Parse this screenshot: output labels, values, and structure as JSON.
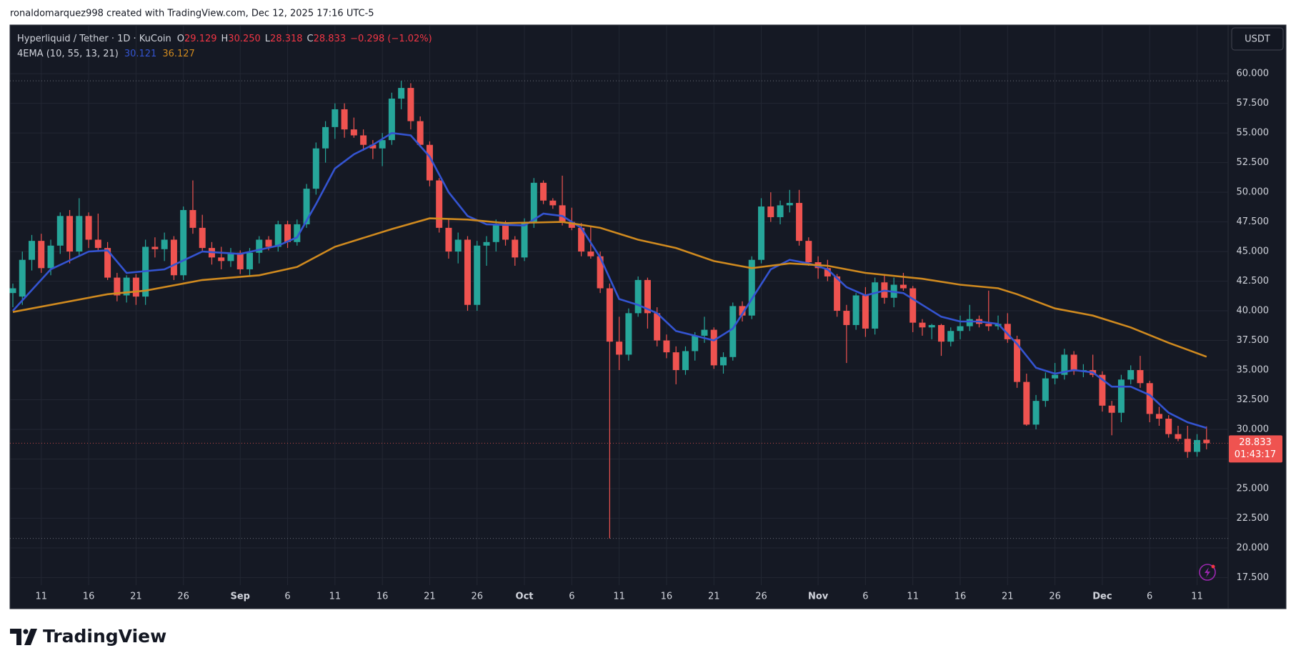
{
  "header": {
    "attribution": "ronaldomarquez998 created with TradingView.com, Dec 12, 2025 17:16 UTC-5"
  },
  "footer": {
    "brand": "TradingView"
  },
  "chart_data": {
    "type": "candlestick",
    "title": "Hyperliquid / Tether · 1D · KuCoin",
    "ohlc_legend": [
      {
        "label": "O",
        "value": "29.129"
      },
      {
        "label": "H",
        "value": "30.250"
      },
      {
        "label": "L",
        "value": "28.318"
      },
      {
        "label": "C",
        "value": "28.833"
      }
    ],
    "change": "−0.298 (−1.02%)",
    "indicator": "4EMA (10, 55, 13, 21)",
    "currency": "USDT",
    "countdown": "01:43:17",
    "up_color": "#26a69a",
    "down_color": "#ef5350",
    "grid": true,
    "categories": [
      null,
      null,
      null,
      "11",
      null,
      null,
      null,
      null,
      "16",
      null,
      null,
      null,
      null,
      "21",
      null,
      null,
      null,
      null,
      "26",
      null,
      null,
      null,
      null,
      null,
      "Sep",
      null,
      null,
      null,
      null,
      "6",
      null,
      null,
      null,
      null,
      "11",
      null,
      null,
      null,
      null,
      "16",
      null,
      null,
      null,
      null,
      "21",
      null,
      null,
      null,
      null,
      "26",
      null,
      null,
      null,
      null,
      "Oct",
      null,
      null,
      null,
      null,
      "6",
      null,
      null,
      null,
      null,
      "11",
      null,
      null,
      null,
      null,
      "16",
      null,
      null,
      null,
      null,
      "21",
      null,
      null,
      null,
      null,
      "26",
      null,
      null,
      null,
      null,
      null,
      "Nov",
      null,
      null,
      null,
      null,
      "6",
      null,
      null,
      null,
      null,
      "11",
      null,
      null,
      null,
      null,
      "16",
      null,
      null,
      null,
      null,
      "21",
      null,
      null,
      null,
      null,
      "26",
      null,
      null,
      null,
      null,
      "Dec",
      null,
      null,
      null,
      null,
      "6",
      null,
      null,
      null,
      null,
      "11",
      null
    ],
    "open": [
      41.5,
      41.2,
      44.3,
      45.9,
      43.6,
      45.5,
      48.0,
      45.0,
      48.0,
      46.0,
      45.3,
      42.8,
      41.3,
      42.8,
      41.2,
      45.4,
      45.2,
      46.0,
      43.0,
      48.5,
      47.0,
      45.3,
      44.5,
      44.2,
      44.9,
      43.5,
      44.9,
      46.0,
      45.4,
      47.3,
      45.8,
      47.3,
      50.3,
      53.7,
      55.5,
      57.0,
      55.3,
      54.8,
      54.0,
      53.7,
      54.4,
      57.9,
      58.8,
      56.0,
      54.0,
      51.0,
      47.0,
      45.0,
      46.0,
      40.5,
      45.5,
      45.8,
      47.3,
      46.0,
      44.5,
      47.5,
      50.8,
      49.3,
      48.9,
      47.5,
      47.0,
      45.0,
      44.6,
      41.9,
      37.4,
      36.3,
      39.8,
      42.6,
      39.8,
      37.5,
      36.5,
      35.0,
      36.6,
      37.9,
      38.4,
      35.4,
      36.1,
      40.4,
      39.6,
      44.3,
      48.8,
      47.9,
      48.9,
      49.1,
      45.9,
      44.1,
      43.6,
      42.9,
      40.0,
      38.8,
      41.3,
      38.5,
      42.4,
      41.1,
      42.2,
      41.9,
      39.0,
      38.6,
      38.8,
      37.4,
      38.3,
      38.7,
      39.3,
      38.9,
      38.7,
      38.9,
      37.6,
      34.0,
      30.4,
      32.4,
      34.3,
      34.6,
      36.3,
      34.9,
      35.0,
      34.6,
      32.0,
      31.4,
      34.2,
      35.0,
      33.9,
      31.3,
      30.9,
      29.6,
      29.2,
      28.1,
      29.129
    ],
    "high": [
      42.3,
      45.0,
      46.4,
      46.5,
      46.0,
      48.3,
      48.5,
      49.5,
      48.3,
      48.2,
      45.8,
      43.2,
      43.0,
      43.1,
      46.0,
      46.2,
      46.6,
      46.3,
      48.8,
      51.0,
      48.1,
      45.8,
      45.4,
      45.3,
      45.1,
      45.3,
      46.3,
      46.3,
      47.6,
      47.6,
      47.7,
      50.7,
      54.2,
      56.0,
      57.5,
      57.5,
      56.3,
      55.3,
      54.4,
      55.0,
      58.4,
      59.4,
      59.2,
      56.4,
      54.3,
      51.2,
      47.8,
      46.6,
      46.3,
      45.9,
      46.3,
      47.7,
      47.6,
      46.3,
      47.8,
      51.2,
      51.0,
      49.5,
      51.4,
      48.7,
      47.4,
      47.2,
      45.0,
      42.3,
      39.5,
      40.2,
      42.9,
      42.8,
      40.3,
      38.0,
      37.0,
      37.0,
      38.2,
      39.5,
      38.6,
      36.5,
      40.7,
      40.8,
      44.6,
      49.5,
      50.0,
      49.3,
      50.2,
      50.2,
      46.2,
      44.6,
      44.3,
      43.1,
      40.5,
      41.5,
      42.0,
      42.8,
      43.0,
      42.8,
      43.2,
      42.1,
      39.3,
      38.9,
      38.9,
      38.6,
      39.6,
      40.5,
      39.6,
      41.7,
      39.6,
      39.8,
      37.9,
      34.7,
      32.9,
      34.8,
      35.6,
      36.8,
      36.6,
      35.5,
      36.3,
      34.9,
      32.4,
      34.6,
      35.4,
      36.2,
      34.1,
      31.9,
      31.2,
      30.3,
      30.3,
      29.6,
      30.25
    ],
    "low": [
      40.3,
      40.5,
      43.4,
      43.2,
      43.0,
      44.8,
      44.0,
      44.6,
      45.3,
      45.0,
      42.6,
      40.8,
      40.7,
      40.5,
      40.5,
      44.5,
      44.2,
      42.6,
      42.6,
      46.5,
      45.0,
      43.9,
      43.5,
      43.7,
      43.1,
      43.0,
      44.0,
      45.1,
      45.0,
      45.3,
      45.5,
      47.0,
      49.8,
      52.5,
      54.5,
      54.6,
      54.6,
      53.5,
      52.8,
      52.2,
      54.0,
      57.0,
      55.3,
      53.8,
      50.5,
      46.6,
      44.4,
      44.0,
      40.0,
      40.0,
      43.8,
      45.0,
      45.5,
      43.8,
      44.2,
      47.0,
      49.0,
      48.6,
      47.2,
      46.8,
      44.6,
      44.4,
      41.5,
      20.8,
      35.0,
      35.8,
      39.5,
      38.5,
      37.0,
      36.0,
      33.8,
      34.6,
      35.8,
      37.3,
      35.1,
      34.7,
      35.8,
      39.1,
      39.3,
      44.0,
      47.5,
      47.3,
      48.3,
      45.5,
      43.8,
      42.7,
      42.5,
      39.5,
      35.6,
      38.4,
      37.8,
      38.0,
      40.6,
      40.3,
      41.7,
      38.2,
      37.9,
      37.6,
      36.2,
      37.0,
      37.6,
      38.3,
      38.6,
      38.3,
      38.4,
      37.3,
      33.5,
      30.3,
      30.0,
      31.9,
      33.8,
      34.2,
      34.6,
      34.4,
      34.4,
      31.5,
      29.5,
      30.6,
      33.8,
      33.5,
      30.6,
      30.3,
      29.3,
      29.0,
      27.6,
      27.7,
      28.318
    ],
    "close": [
      41.9,
      44.3,
      45.9,
      43.6,
      45.5,
      48.0,
      45.0,
      48.0,
      46.0,
      45.3,
      42.8,
      41.3,
      42.8,
      41.2,
      45.4,
      45.2,
      46.0,
      43.0,
      48.5,
      47.0,
      45.3,
      44.5,
      44.2,
      44.9,
      43.5,
      44.9,
      46.0,
      45.4,
      47.3,
      45.8,
      47.3,
      50.3,
      53.7,
      55.5,
      57.0,
      55.3,
      54.8,
      54.0,
      53.7,
      54.4,
      57.9,
      58.8,
      56.0,
      54.0,
      51.0,
      47.0,
      45.0,
      46.0,
      40.5,
      45.5,
      45.8,
      47.3,
      46.0,
      44.5,
      47.5,
      50.8,
      49.3,
      48.9,
      47.5,
      47.0,
      45.0,
      44.6,
      41.9,
      37.4,
      36.3,
      39.8,
      42.6,
      39.8,
      37.5,
      36.5,
      35.0,
      36.6,
      37.9,
      38.4,
      35.4,
      36.1,
      40.4,
      39.6,
      44.3,
      48.8,
      47.9,
      48.9,
      49.1,
      45.9,
      44.1,
      43.6,
      42.9,
      40.0,
      38.8,
      41.3,
      38.5,
      42.4,
      41.1,
      42.2,
      41.9,
      39.0,
      38.6,
      38.8,
      37.4,
      38.3,
      38.7,
      39.3,
      38.9,
      38.7,
      38.9,
      37.6,
      34.0,
      30.4,
      32.4,
      34.3,
      34.6,
      36.3,
      34.9,
      35.0,
      34.6,
      32.0,
      31.4,
      34.2,
      35.0,
      33.9,
      31.3,
      30.9,
      29.6,
      29.2,
      28.1,
      29.1,
      28.833
    ],
    "series": [
      {
        "color": "#3454d1",
        "x": [
          0,
          4,
          8,
          10,
          12,
          16,
          20,
          24,
          28,
          30,
          32,
          34,
          36,
          38,
          40,
          42,
          44,
          46,
          48,
          50,
          54,
          56,
          58,
          60,
          62,
          64,
          66,
          68,
          70,
          72,
          74,
          76,
          78,
          80,
          82,
          84,
          86,
          88,
          90,
          92,
          94,
          96,
          98,
          100,
          102,
          104,
          106,
          108,
          110,
          112,
          114,
          116,
          118,
          120,
          122,
          124,
          126
        ],
        "values": [
          40.0,
          43.5,
          45.0,
          45.1,
          43.2,
          43.5,
          45.0,
          44.8,
          45.5,
          46.2,
          49.0,
          52.0,
          53.2,
          54.0,
          55.0,
          54.8,
          53.0,
          50.0,
          48.0,
          47.3,
          47.2,
          48.2,
          48.0,
          47.0,
          44.5,
          41.0,
          40.5,
          39.8,
          38.3,
          37.9,
          37.5,
          38.5,
          41.0,
          43.5,
          44.3,
          44.0,
          43.5,
          42.0,
          41.3,
          41.7,
          41.5,
          40.5,
          39.5,
          39.1,
          39.1,
          38.9,
          37.2,
          35.2,
          34.7,
          35.0,
          34.8,
          33.6,
          33.6,
          32.9,
          31.4,
          30.6,
          30.121
        ]
      },
      {
        "color": "#d08a1f",
        "x": [
          0,
          10,
          14,
          20,
          26,
          30,
          34,
          40,
          44,
          48,
          52,
          58,
          62,
          66,
          70,
          74,
          78,
          82,
          86,
          90,
          96,
          100,
          104,
          106,
          110,
          114,
          118,
          122,
          126
        ],
        "values": [
          39.9,
          41.4,
          41.7,
          42.6,
          43.0,
          43.7,
          45.4,
          46.9,
          47.8,
          47.7,
          47.4,
          47.5,
          47.0,
          46.0,
          45.3,
          44.2,
          43.6,
          44.0,
          43.8,
          43.2,
          42.7,
          42.2,
          41.9,
          41.4,
          40.2,
          39.6,
          38.6,
          37.3,
          36.127
        ]
      }
    ],
    "ylim": [
      16.86,
      64.11
    ],
    "yticks": [
      {
        "value": 17.5,
        "label": "17.500"
      },
      {
        "value": 20,
        "label": "20.000"
      },
      {
        "value": 22.5,
        "label": "22.500"
      },
      {
        "value": 25,
        "label": "25.000"
      },
      {
        "value": 27.5,
        "label": "27.500"
      },
      {
        "value": 30,
        "label": "30.000"
      },
      {
        "value": 32.5,
        "label": "32.500"
      },
      {
        "value": 35,
        "label": "35.000"
      },
      {
        "value": 37.5,
        "label": "37.500"
      },
      {
        "value": 40,
        "label": "40.000"
      },
      {
        "value": 42.5,
        "label": "42.500"
      },
      {
        "value": 45,
        "label": "45.000"
      },
      {
        "value": 47.5,
        "label": "47.500"
      },
      {
        "value": 50,
        "label": "50.000"
      },
      {
        "value": 52.5,
        "label": "52.500"
      },
      {
        "value": 55,
        "label": "55.000"
      },
      {
        "value": 57.5,
        "label": "57.500"
      },
      {
        "value": 60,
        "label": "60.000"
      }
    ]
  }
}
